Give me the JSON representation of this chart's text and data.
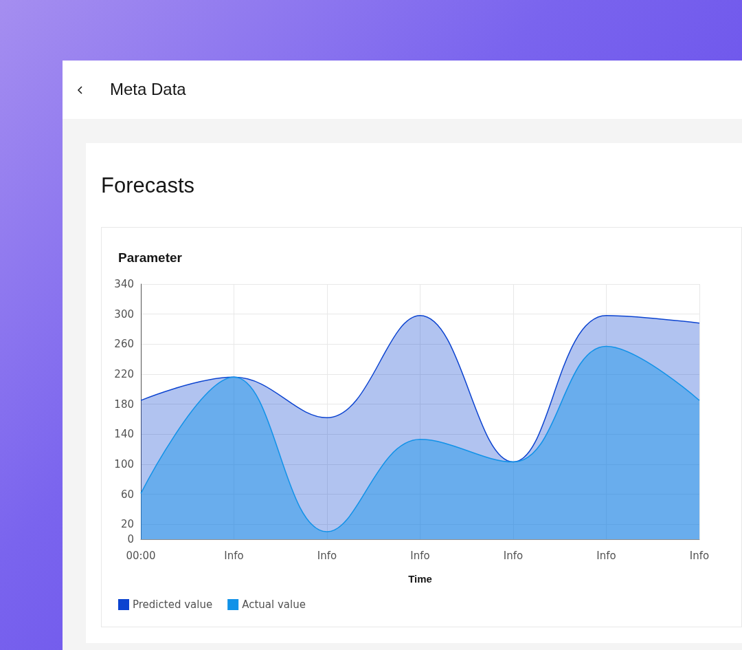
{
  "chart_data": {
    "type": "area",
    "title": "Parameter",
    "xlabel": "Time",
    "annotations": [
      "Meta Data",
      "Forecasts"
    ],
    "categories": [
      "00:00",
      "Info",
      "Info",
      "Info",
      "Info",
      "Info",
      "Info"
    ],
    "series": [
      {
        "name": "Predicted value",
        "color": "#0b43d0",
        "values": [
          185,
          216,
          162,
          298,
          103,
          298,
          288
        ]
      },
      {
        "name": "Actual value",
        "color": "#1192e8",
        "values": [
          61,
          216,
          10,
          133,
          103,
          257,
          185
        ]
      }
    ],
    "ylim": [
      0,
      340
    ],
    "yticks": [
      0,
      20,
      60,
      100,
      140,
      180,
      220,
      260,
      300,
      340
    ],
    "grid": true,
    "legend": "bottom left",
    "marker": "none",
    "line_style": "solid"
  }
}
